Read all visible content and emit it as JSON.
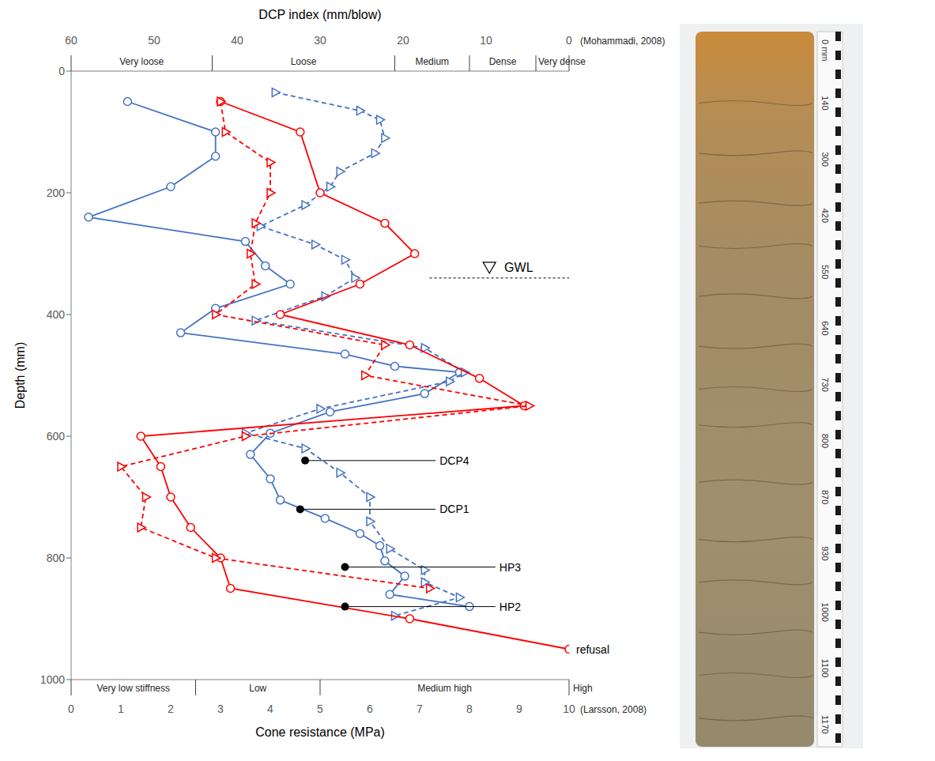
{
  "chart_data": {
    "type": "line",
    "x_label": "Cone resistance (MPa)",
    "xlim": [
      0,
      10
    ],
    "xticks": [
      0,
      1,
      2,
      3,
      4,
      5,
      6,
      7,
      8,
      9,
      10
    ],
    "x2_label": "DCP index (mm/blow)",
    "x2lim": [
      60,
      0
    ],
    "x2ticks": [
      60,
      50,
      40,
      30,
      20,
      10,
      0
    ],
    "y_label": "Depth (mm)",
    "ylim": [
      0,
      1000
    ],
    "yticks": [
      0,
      200,
      400,
      600,
      800,
      1000
    ],
    "grid": false,
    "series": [
      {
        "name": "DCP1",
        "color": "#4472c4",
        "marker": "circle",
        "line_style": "solid",
        "axis": "x2",
        "x": [
          53.2,
          42.6,
          42.6,
          48,
          57.9,
          39,
          36.6,
          33.6,
          42.6,
          46.8,
          27,
          21,
          13.2,
          17.4,
          28.8,
          36,
          38.4,
          36,
          34.8,
          29.4,
          25.2,
          22.8,
          22.2,
          19.8,
          21.6,
          12
        ],
        "y": [
          50,
          100,
          140,
          190,
          240,
          280,
          320,
          350,
          390,
          430,
          465,
          485,
          495,
          530,
          560,
          595,
          630,
          670,
          705,
          735,
          760,
          780,
          805,
          830,
          860,
          880
        ],
        "label_point": [
          32.4,
          720
        ]
      },
      {
        "name": "DCP4",
        "color": "#4472c4",
        "marker": "triangle",
        "line_style": "dashed",
        "axis": "x2",
        "x": [
          35.4,
          25.2,
          22.8,
          22.2,
          23.4,
          27.6,
          28.8,
          31.8,
          37.2,
          30.6,
          27,
          25.8,
          29.4,
          37.8,
          17.4,
          12.6,
          14.4,
          30,
          39,
          31.8,
          27.6,
          24,
          24,
          21.6,
          17.4,
          17.4,
          13.2,
          21
        ],
        "y": [
          35,
          65,
          80,
          110,
          135,
          165,
          190,
          220,
          255,
          285,
          310,
          340,
          370,
          410,
          455,
          495,
          510,
          555,
          595,
          620,
          660,
          700,
          740,
          785,
          820,
          840,
          865,
          895
        ],
        "label_point": [
          31.8,
          640
        ]
      },
      {
        "name": "HP2",
        "color": "#ff0000",
        "marker": "circle",
        "line_style": "solid",
        "x": [
          3,
          4.6,
          5,
          6.3,
          6.9,
          5.8,
          4.2,
          6.8,
          8.2,
          9.1,
          1.4,
          1.8,
          2,
          2.4,
          3,
          3.2,
          6.8,
          10
        ],
        "y": [
          50,
          100,
          200,
          250,
          300,
          350,
          400,
          450,
          505,
          550,
          600,
          650,
          700,
          750,
          800,
          850,
          900,
          950
        ],
        "label_point": [
          5.5,
          880
        ]
      },
      {
        "name": "HP3",
        "color": "#ff0000",
        "marker": "triangle",
        "line_style": "dashed",
        "x": [
          3,
          3.1,
          4,
          4,
          3.7,
          3.6,
          3.7,
          2.9,
          6.3,
          5.9,
          9.2,
          3.5,
          1,
          1.5,
          1.4,
          2.9,
          7.2
        ],
        "y": [
          50,
          100,
          150,
          200,
          250,
          300,
          350,
          400,
          450,
          500,
          550,
          600,
          650,
          700,
          750,
          800,
          850
        ],
        "label_point": [
          5.5,
          815
        ]
      }
    ],
    "dcp_classes": {
      "source": "(Mohammadi, 2008)",
      "labels": [
        "Very loose",
        "Loose",
        "Medium",
        "Dense",
        "Very dense"
      ],
      "bounds": [
        60,
        43,
        21,
        12,
        4,
        0
      ]
    },
    "stiffness_classes": {
      "source": "(Larsson, 2008)",
      "labels": [
        "Very low stiffness",
        "Low",
        "Medium high",
        "High"
      ],
      "bounds": [
        0,
        2.5,
        5,
        10
      ]
    },
    "annotations": [
      {
        "text": "refusal",
        "x": 10,
        "y": 950
      },
      {
        "text": "GWL",
        "y": 340
      }
    ]
  },
  "photo": {
    "tape_labels": [
      "0 mm",
      "140",
      "300",
      "420",
      "550",
      "640",
      "730",
      "800",
      "870",
      "930",
      "1000",
      "1100",
      "1170"
    ]
  }
}
